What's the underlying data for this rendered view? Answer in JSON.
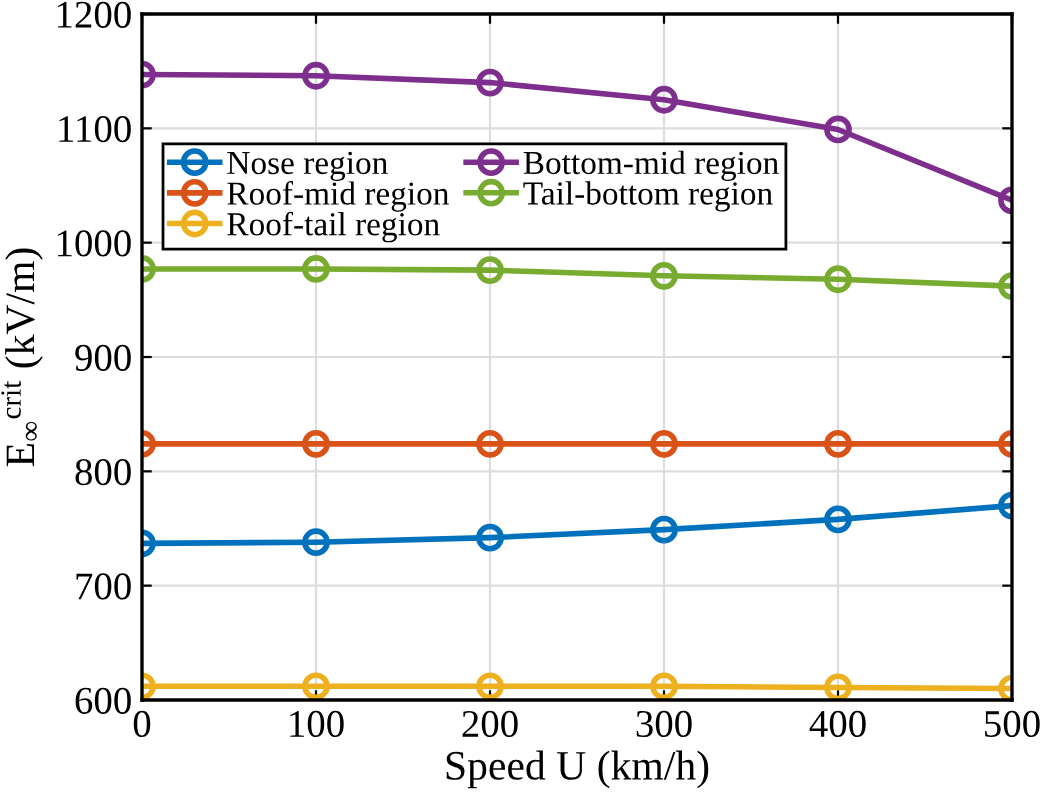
{
  "chart_data": {
    "type": "line",
    "xlabel": "Speed U (km/h)",
    "ylabel": "E$_{∞}$$^{crit}$ (kV/m)",
    "x": [
      0,
      100,
      200,
      300,
      400,
      500
    ],
    "series": [
      {
        "name": "Nose region",
        "color": "#0072bd",
        "values": [
          737,
          738,
          742,
          749,
          758,
          770
        ]
      },
      {
        "name": "Roof-mid region",
        "color": "#d95319",
        "values": [
          824,
          824,
          824,
          824,
          824,
          824
        ]
      },
      {
        "name": "Roof-tail region",
        "color": "#edb120",
        "values": [
          612,
          612,
          612,
          612,
          611,
          610
        ]
      },
      {
        "name": "Bottom-mid region",
        "color": "#7e2f8e",
        "values": [
          1147,
          1146,
          1140,
          1125,
          1099,
          1037
        ]
      },
      {
        "name": "Tail-bottom region",
        "color": "#77ac30",
        "values": [
          977,
          977,
          976,
          971,
          968,
          962
        ]
      }
    ],
    "xlim": [
      0,
      500
    ],
    "xticks": [
      0,
      100,
      200,
      300,
      400,
      500
    ],
    "ylim": [
      600,
      1200
    ],
    "yticks": [
      600,
      700,
      800,
      900,
      1000,
      1100,
      1200
    ],
    "grid": true,
    "legend": "top left",
    "marker": "circle",
    "line_style": "solid"
  }
}
